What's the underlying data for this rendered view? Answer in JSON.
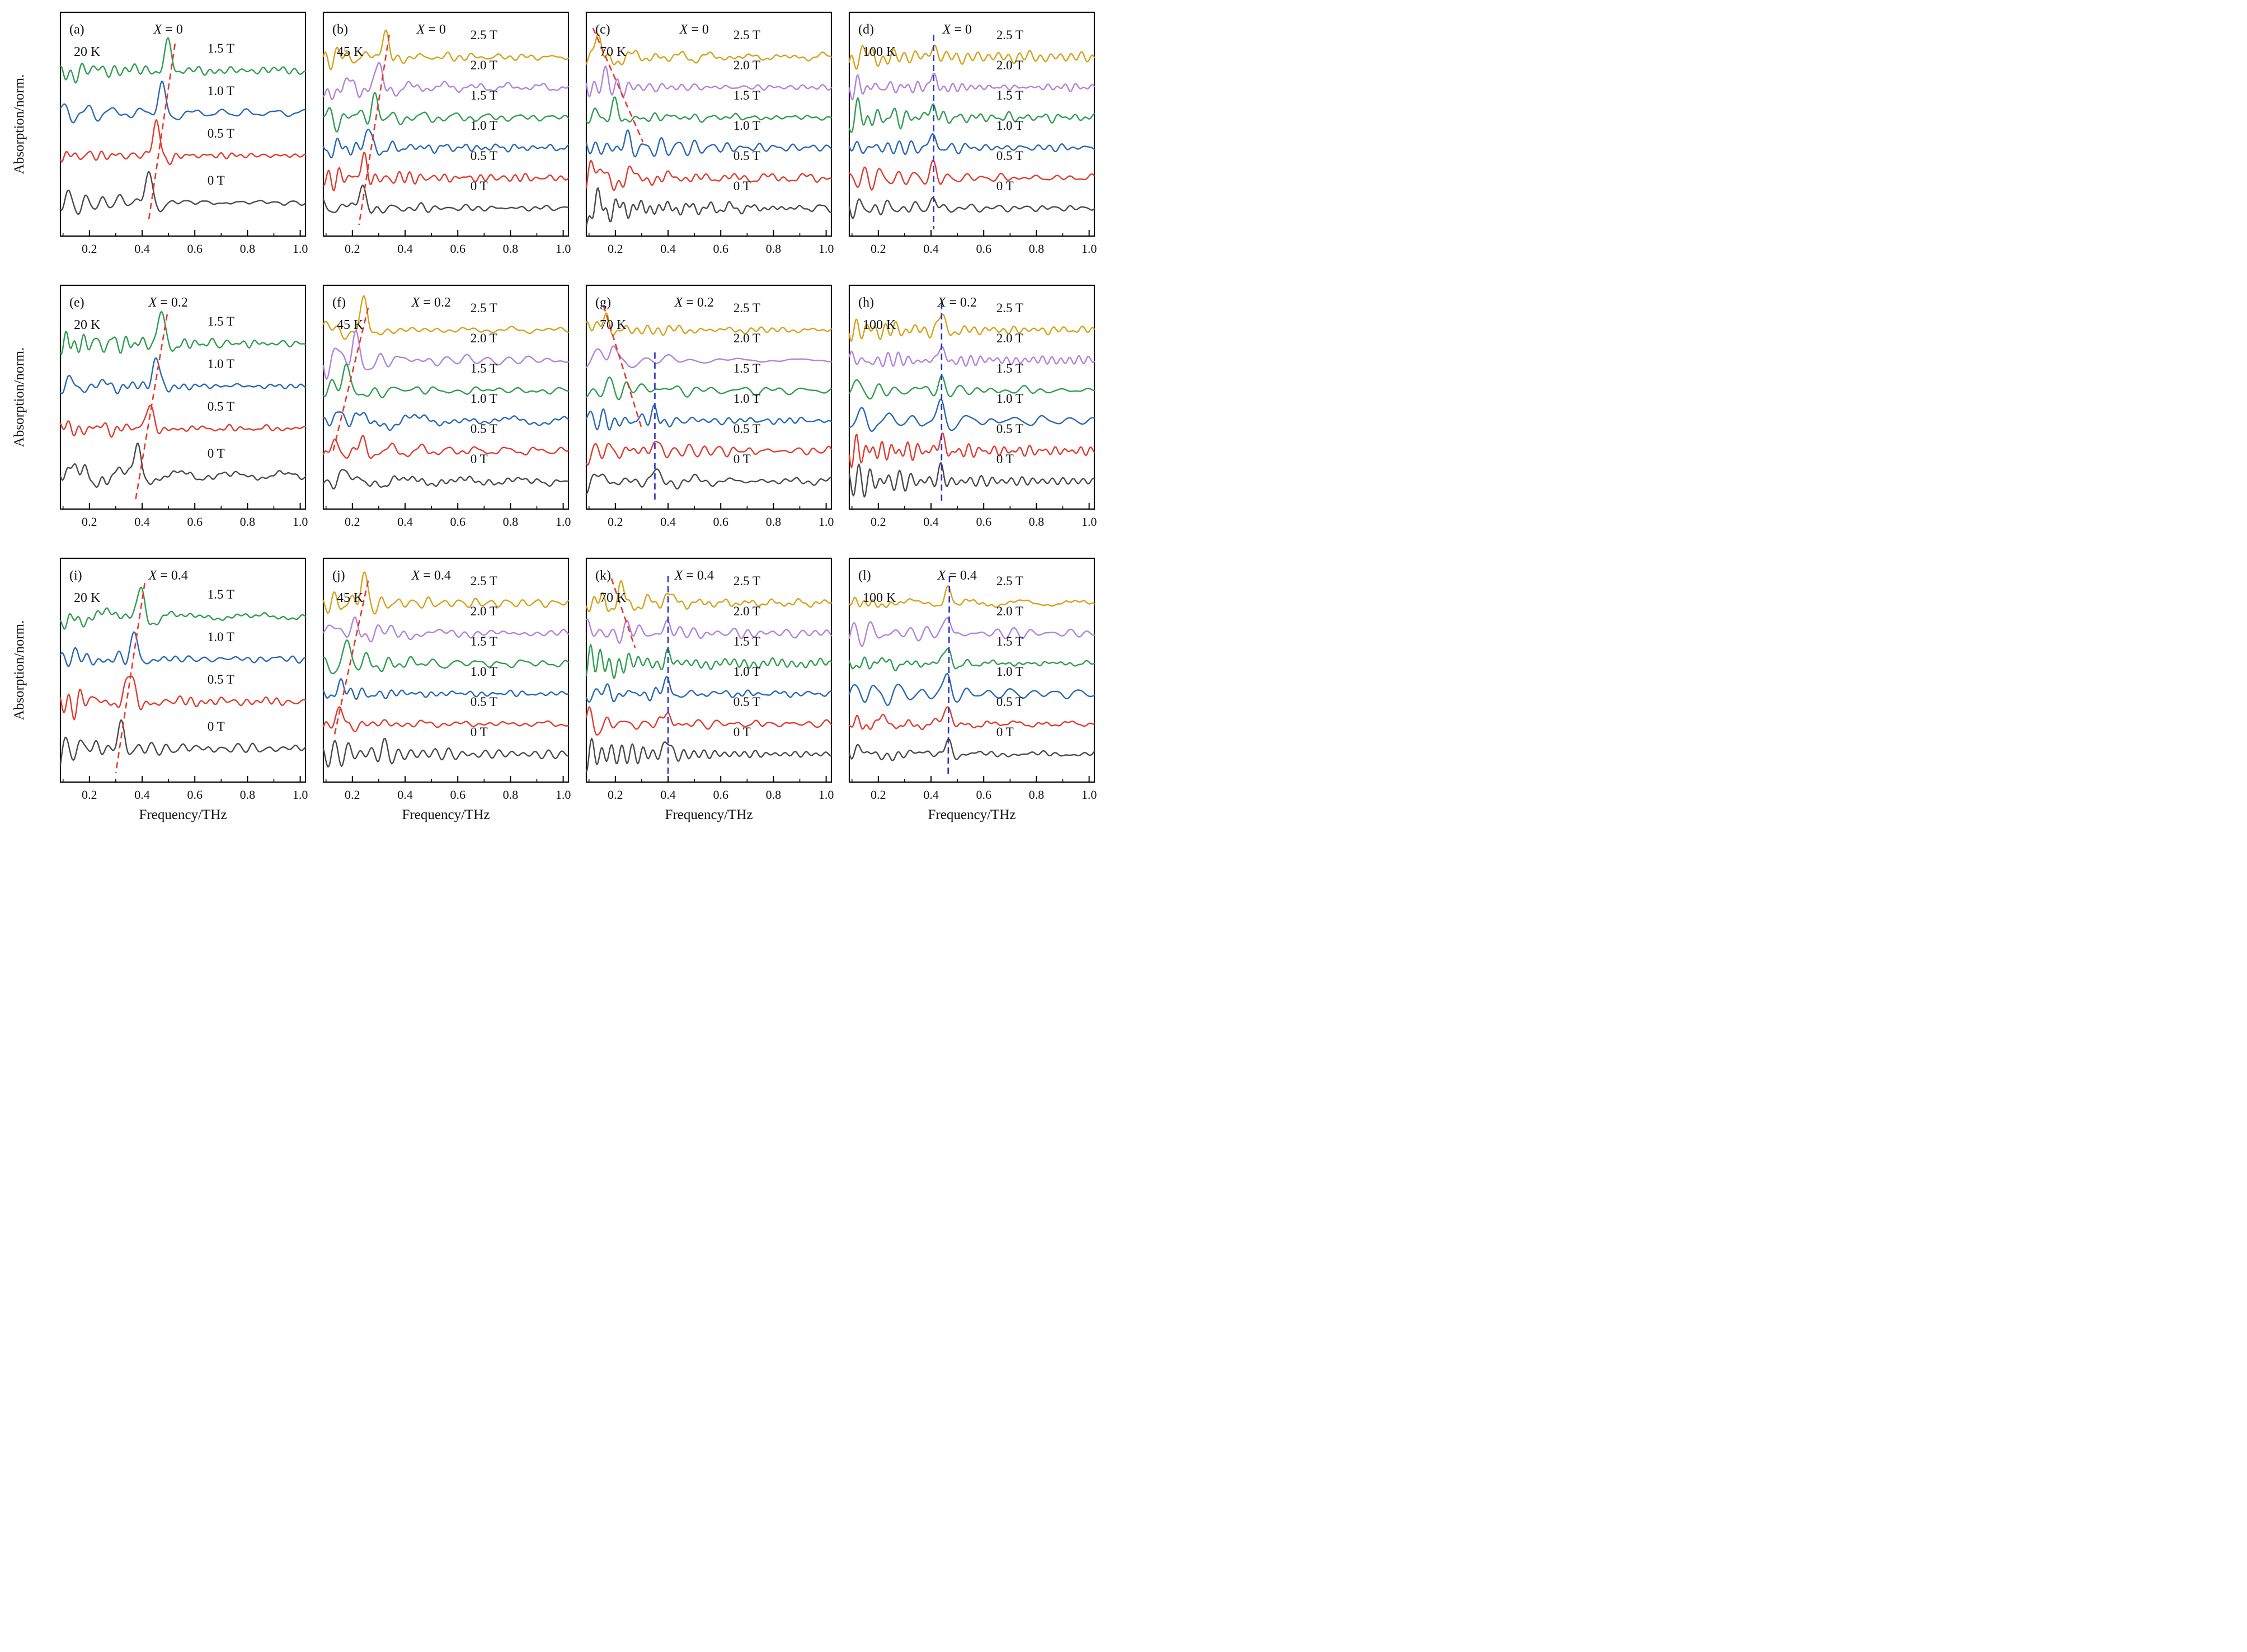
{
  "figure": {
    "xlabel": "Frequency/THz",
    "ylabel": "Absorption/norm."
  },
  "chart_data": {
    "type": "line",
    "title": "THz absorption spectra vs frequency for X = 0, 0.2, 0.4 at 20 K, 45 K, 70 K, 100 K under magnetic fields 0 - 2.5 T",
    "xlabel": "Frequency/THz",
    "ylabel": "Absorption/norm.",
    "x_range": [
      0.09,
      1.02
    ],
    "x_ticks": [
      0.2,
      0.4,
      0.6,
      0.8,
      1.0
    ],
    "x_minor_ticks": [
      0.1,
      0.3,
      0.5,
      0.7,
      0.9
    ],
    "grid": false,
    "legend_position": "inline-right-of-each-curve",
    "colors": {
      "0 T": "#4a4a4a",
      "0.5 T": "#e23b2e",
      "1.0 T": "#2769b5",
      "1.5 T": "#2f9e4f",
      "2.0 T": "#b183dc",
      "2.5 T": "#d7a21a",
      "red_guide": "#e8382a",
      "blue_guide": "#2a32c8"
    },
    "panels": [
      {
        "id": "(a)",
        "row": 0,
        "col": 0,
        "composition": "X = 0",
        "temperature": "20 K",
        "curves": [
          {
            "field": "1.5 T",
            "peak_thz": 0.5,
            "amp": 0.155
          },
          {
            "field": "1.0 T",
            "peak_thz": 0.475,
            "amp": 0.145
          },
          {
            "field": "0.5 T",
            "peak_thz": 0.455,
            "amp": 0.165
          },
          {
            "field": "0 T",
            "peak_thz": 0.425,
            "amp": 0.15
          }
        ],
        "guides": [
          {
            "color": "red",
            "x_top": 0.525,
            "y_top_frac": 0.14,
            "x_bottom": 0.425,
            "y_bottom_frac": 0.93
          }
        ]
      },
      {
        "id": "(b)",
        "row": 0,
        "col": 1,
        "composition": "X = 0",
        "temperature": "45 K",
        "curves": [
          {
            "field": "2.5 T",
            "peak_thz": 0.325,
            "amp": 0.125
          },
          {
            "field": "2.0 T",
            "peak_thz": 0.3,
            "amp": 0.095
          },
          {
            "field": "1.5 T",
            "peak_thz": 0.285,
            "amp": 0.115
          },
          {
            "field": "1.0 T",
            "peak_thz": 0.26,
            "amp": 0.085
          },
          {
            "field": "0.5 T",
            "peak_thz": 0.245,
            "amp": 0.1
          },
          {
            "field": "0 T",
            "peak_thz": 0.235,
            "amp": 0.125
          }
        ],
        "guides": [
          {
            "color": "red",
            "x_top": 0.34,
            "y_top_frac": 0.1,
            "x_bottom": 0.225,
            "y_bottom_frac": 0.95
          }
        ]
      },
      {
        "id": "(c)",
        "row": 0,
        "col": 2,
        "composition": "X = 0",
        "temperature": "70 K",
        "curves": [
          {
            "field": "2.5 T",
            "peak_thz": 0.13,
            "amp": 0.095
          },
          {
            "field": "2.0 T",
            "peak_thz": 0.165,
            "amp": 0.065
          },
          {
            "field": "1.5 T",
            "peak_thz": 0.2,
            "amp": 0.055
          },
          {
            "field": "1.0 T",
            "peak_thz": 0.245,
            "amp": 0.045
          },
          {
            "field": "0.5 T",
            "peak_thz": 0.155,
            "amp": 0.03
          },
          {
            "field": "0 T",
            "peak_thz": 0.15,
            "amp": 0.0
          }
        ],
        "guides": [
          {
            "color": "red",
            "x_top": 0.115,
            "y_top_frac": 0.07,
            "x_bottom": 0.305,
            "y_bottom_frac": 0.58
          }
        ]
      },
      {
        "id": "(d)",
        "row": 0,
        "col": 3,
        "composition": "X = 0",
        "temperature": "100 K",
        "curves": [
          {
            "field": "2.5 T",
            "peak_thz": 0.41,
            "amp": 0.065
          },
          {
            "field": "2.0 T",
            "peak_thz": 0.41,
            "amp": 0.06
          },
          {
            "field": "1.5 T",
            "peak_thz": 0.41,
            "amp": 0.07
          },
          {
            "field": "1.0 T",
            "peak_thz": 0.41,
            "amp": 0.065
          },
          {
            "field": "0.5 T",
            "peak_thz": 0.41,
            "amp": 0.055
          },
          {
            "field": "0 T",
            "peak_thz": 0.41,
            "amp": 0.05
          }
        ],
        "guides": [
          {
            "color": "blue",
            "x_top": 0.41,
            "y_top_frac": 0.1,
            "x_bottom": 0.41,
            "y_bottom_frac": 0.97
          }
        ]
      },
      {
        "id": "(e)",
        "row": 1,
        "col": 0,
        "composition": "X = 0.2",
        "temperature": "20 K",
        "curves": [
          {
            "field": "1.5 T",
            "peak_thz": 0.475,
            "amp": 0.155
          },
          {
            "field": "1.0 T",
            "peak_thz": 0.455,
            "amp": 0.145
          },
          {
            "field": "0.5 T",
            "peak_thz": 0.43,
            "amp": 0.135
          },
          {
            "field": "0 T",
            "peak_thz": 0.385,
            "amp": 0.15
          }
        ],
        "guides": [
          {
            "color": "red",
            "x_top": 0.495,
            "y_top_frac": 0.13,
            "x_bottom": 0.375,
            "y_bottom_frac": 0.96
          }
        ]
      },
      {
        "id": "(f)",
        "row": 1,
        "col": 1,
        "composition": "X = 0.2",
        "temperature": "45 K",
        "curves": [
          {
            "field": "2.5 T",
            "peak_thz": 0.245,
            "amp": 0.135
          },
          {
            "field": "2.0 T",
            "peak_thz": 0.21,
            "amp": 0.115
          },
          {
            "field": "1.5 T",
            "peak_thz": 0.175,
            "amp": 0.125
          },
          {
            "field": "1.0 T",
            "peak_thz": 0.155,
            "amp": 0.055
          },
          {
            "field": "0.5 T",
            "peak_thz": 0.235,
            "amp": 0.04
          },
          {
            "field": "0 T",
            "peak_thz": 0.15,
            "amp": 0.03
          }
        ],
        "guides": [
          {
            "color": "red",
            "x_top": 0.26,
            "y_top_frac": 0.1,
            "x_bottom": 0.125,
            "y_bottom_frac": 0.75
          }
        ]
      },
      {
        "id": "(g)",
        "row": 1,
        "col": 2,
        "composition": "X = 0.2",
        "temperature": "70 K",
        "curves": [
          {
            "field": "2.5 T",
            "peak_thz": 0.165,
            "amp": 0.095
          },
          {
            "field": "2.0 T",
            "peak_thz": 0.19,
            "amp": 0.075
          },
          {
            "field": "1.5 T",
            "peak_thz": 0.24,
            "amp": 0.045,
            "peak2_thz": 0.35,
            "amp2": 0.03
          },
          {
            "field": "1.0 T",
            "peak_thz": 0.35,
            "amp": 0.05
          },
          {
            "field": "0.5 T",
            "peak_thz": 0.35,
            "amp": 0.05
          },
          {
            "field": "0 T",
            "peak_thz": 0.35,
            "amp": 0.05
          }
        ],
        "guides": [
          {
            "color": "red",
            "x_top": 0.155,
            "y_top_frac": 0.09,
            "x_bottom": 0.3,
            "y_bottom_frac": 0.64
          },
          {
            "color": "blue",
            "x_top": 0.35,
            "y_top_frac": 0.3,
            "x_bottom": 0.35,
            "y_bottom_frac": 0.97
          }
        ]
      },
      {
        "id": "(h)",
        "row": 1,
        "col": 3,
        "composition": "X = 0.2",
        "temperature": "100 K",
        "curves": [
          {
            "field": "2.5 T",
            "peak_thz": 0.44,
            "amp": 0.07
          },
          {
            "field": "2.0 T",
            "peak_thz": 0.44,
            "amp": 0.06
          },
          {
            "field": "1.5 T",
            "peak_thz": 0.44,
            "amp": 0.06
          },
          {
            "field": "1.0 T",
            "peak_thz": 0.44,
            "amp": 0.07
          },
          {
            "field": "0.5 T",
            "peak_thz": 0.44,
            "amp": 0.065
          },
          {
            "field": "0 T",
            "peak_thz": 0.44,
            "amp": 0.055
          }
        ],
        "guides": [
          {
            "color": "blue",
            "x_top": 0.44,
            "y_top_frac": 0.08,
            "x_bottom": 0.44,
            "y_bottom_frac": 0.97
          }
        ]
      },
      {
        "id": "(i)",
        "row": 2,
        "col": 0,
        "composition": "X = 0.4",
        "temperature": "20 K",
        "curves": [
          {
            "field": "1.5 T",
            "peak_thz": 0.395,
            "amp": 0.155
          },
          {
            "field": "1.0 T",
            "peak_thz": 0.375,
            "amp": 0.125
          },
          {
            "field": "0.5 T",
            "peak_thz": 0.355,
            "amp": 0.155
          },
          {
            "field": "0 T",
            "peak_thz": 0.32,
            "amp": 0.125
          }
        ],
        "guides": [
          {
            "color": "red",
            "x_top": 0.41,
            "y_top_frac": 0.11,
            "x_bottom": 0.3,
            "y_bottom_frac": 0.96
          }
        ]
      },
      {
        "id": "(j)",
        "row": 2,
        "col": 1,
        "composition": "X = 0.4",
        "temperature": "45 K",
        "curves": [
          {
            "field": "2.5 T",
            "peak_thz": 0.245,
            "amp": 0.135
          },
          {
            "field": "2.0 T",
            "peak_thz": 0.215,
            "amp": 0.1
          },
          {
            "field": "1.5 T",
            "peak_thz": 0.185,
            "amp": 0.1
          },
          {
            "field": "1.0 T",
            "peak_thz": 0.16,
            "amp": 0.05
          },
          {
            "field": "0.5 T",
            "peak_thz": 0.155,
            "amp": 0.05
          },
          {
            "field": "0 T",
            "peak_thz": 0.32,
            "amp": 0.04
          }
        ],
        "guides": [
          {
            "color": "red",
            "x_top": 0.26,
            "y_top_frac": 0.1,
            "x_bottom": 0.13,
            "y_bottom_frac": 0.8
          }
        ]
      },
      {
        "id": "(k)",
        "row": 2,
        "col": 2,
        "composition": "X = 0.4",
        "temperature": "70 K",
        "curves": [
          {
            "field": "2.5 T",
            "peak_thz": 0.225,
            "amp": 0.065,
            "peak2_thz": 0.4,
            "amp2": 0.05
          },
          {
            "field": "2.0 T",
            "peak_thz": 0.26,
            "amp": 0.045,
            "peak2_thz": 0.4,
            "amp2": 0.05
          },
          {
            "field": "1.5 T",
            "peak_thz": 0.4,
            "amp": 0.06
          },
          {
            "field": "1.0 T",
            "peak_thz": 0.4,
            "amp": 0.07
          },
          {
            "field": "0.5 T",
            "peak_thz": 0.4,
            "amp": 0.07
          },
          {
            "field": "0 T",
            "peak_thz": 0.4,
            "amp": 0.07
          }
        ],
        "guides": [
          {
            "color": "red",
            "x_top": 0.185,
            "y_top_frac": 0.09,
            "x_bottom": 0.275,
            "y_bottom_frac": 0.4
          },
          {
            "color": "blue",
            "x_top": 0.4,
            "y_top_frac": 0.08,
            "x_bottom": 0.4,
            "y_bottom_frac": 0.97
          }
        ]
      },
      {
        "id": "(l)",
        "row": 2,
        "col": 3,
        "composition": "X = 0.4",
        "temperature": "100 K",
        "curves": [
          {
            "field": "2.5 T",
            "peak_thz": 0.465,
            "amp": 0.085
          },
          {
            "field": "2.0 T",
            "peak_thz": 0.465,
            "amp": 0.09
          },
          {
            "field": "1.5 T",
            "peak_thz": 0.465,
            "amp": 0.08
          },
          {
            "field": "1.0 T",
            "peak_thz": 0.465,
            "amp": 0.09
          },
          {
            "field": "0.5 T",
            "peak_thz": 0.465,
            "amp": 0.09
          },
          {
            "field": "0 T",
            "peak_thz": 0.465,
            "amp": 0.08
          }
        ],
        "guides": [
          {
            "color": "blue",
            "x_top": 0.47,
            "y_top_frac": 0.08,
            "x_bottom": 0.465,
            "y_bottom_frac": 0.97
          }
        ]
      }
    ]
  }
}
